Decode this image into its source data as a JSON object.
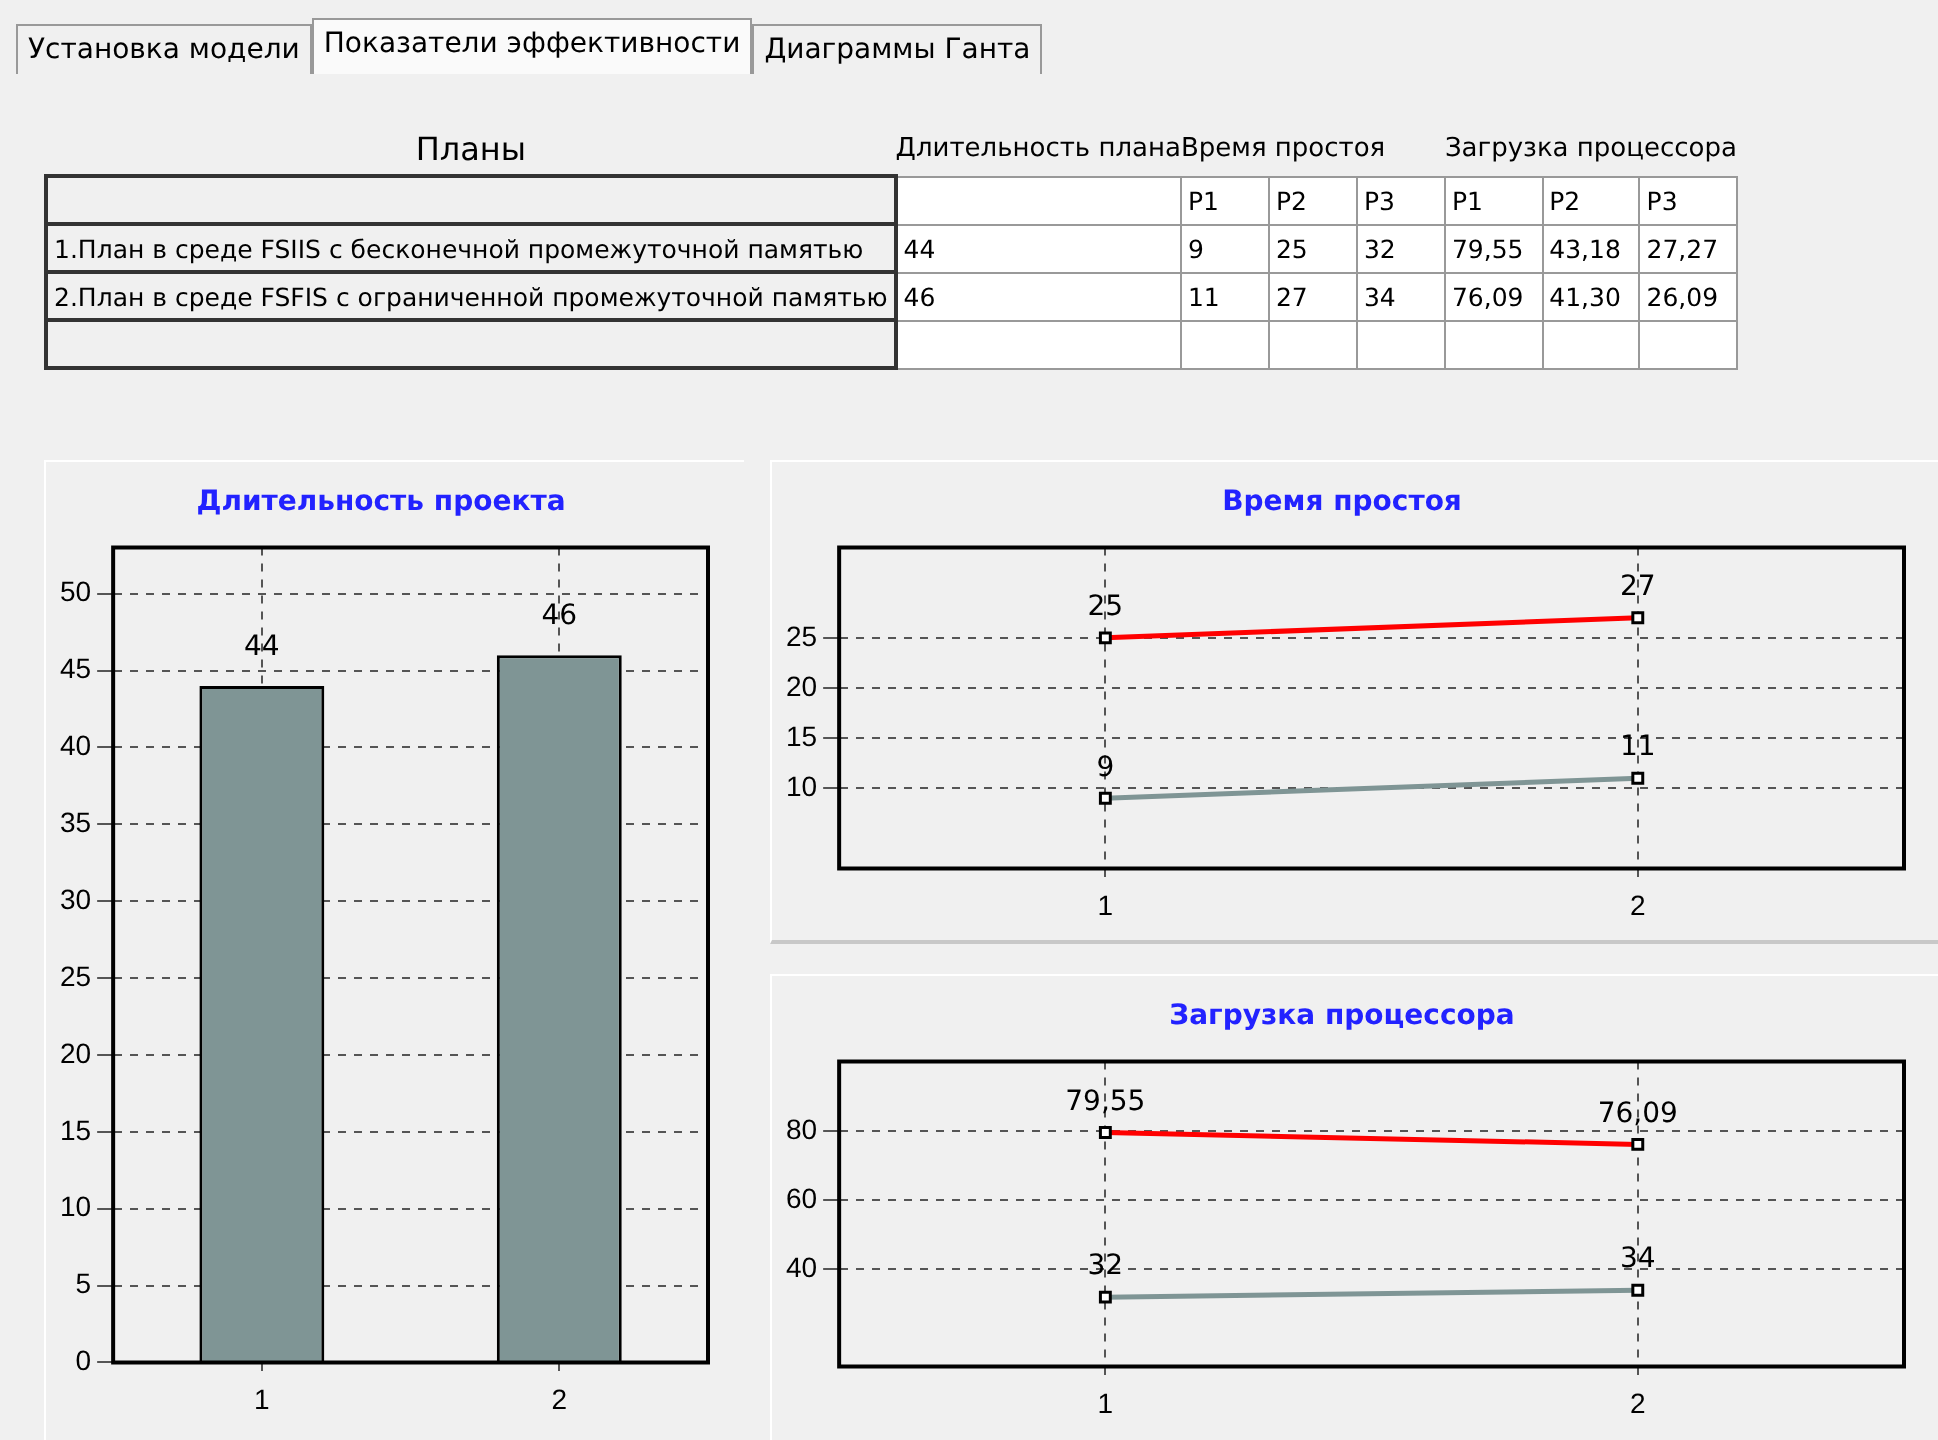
{
  "chart_data": [
    {
      "type": "other",
      "title": "Планы",
      "annotations": [
        "Установка модели",
        "Показатели эффективности",
        "Диаграммы Ганта"
      ],
      "categories": [
        "Длительность плана",
        "Время простоя",
        "Загрузка процессора"
      ],
      "y_categories": [
        null,
        "1.План в среде FSIIS с бесконечной промежуточной памятью",
        "2.План в среде FSFIS с ограниченной промежуточной памятью",
        null
      ],
      "cell_labels": [
        [
          null,
          "P1",
          "P2",
          "P3",
          "P1",
          "P2",
          "P3"
        ],
        [
          "44",
          "9",
          "25",
          "32",
          "79,55",
          "43,18",
          "27,27"
        ],
        [
          "46",
          "11",
          "27",
          "34",
          "76,09",
          "41,30",
          "26,09"
        ],
        [
          null,
          null,
          null,
          null,
          null,
          null,
          null
        ]
      ]
    },
    {
      "type": "bar",
      "title": "Длительность проекта",
      "categories": [
        "1",
        "2"
      ],
      "values": [
        44,
        46
      ],
      "color": "#7f9595",
      "ylim": [
        0,
        53
      ],
      "yticks": [
        0,
        5,
        10,
        15,
        20,
        25,
        30,
        35,
        40,
        45,
        50
      ],
      "grid": true,
      "data_labels": true
    },
    {
      "type": "line",
      "title": "Время простоя",
      "categories": [
        "1",
        "2"
      ],
      "series": [
        {
          "color": "#ff0000",
          "values": [
            25,
            27
          ]
        },
        {
          "color": "#7f9595",
          "values": [
            9,
            11
          ]
        }
      ],
      "ylim": [
        2,
        34
      ],
      "yticks": [
        10,
        15,
        20,
        25
      ],
      "grid": true,
      "data_labels": true,
      "marker": "square"
    },
    {
      "type": "line",
      "title": "Загрузка процессора",
      "categories": [
        "1",
        "2"
      ],
      "series": [
        {
          "color": "#ff0000",
          "values": [
            79.55,
            76.09
          ],
          "value_labels": [
            "79,55",
            "76,09"
          ]
        },
        {
          "color": "#7f9595",
          "values": [
            32,
            34
          ]
        }
      ],
      "ylim": [
        12,
        100
      ],
      "yticks": [
        40,
        60,
        80
      ],
      "grid": true,
      "data_labels": true,
      "marker": "square"
    }
  ]
}
